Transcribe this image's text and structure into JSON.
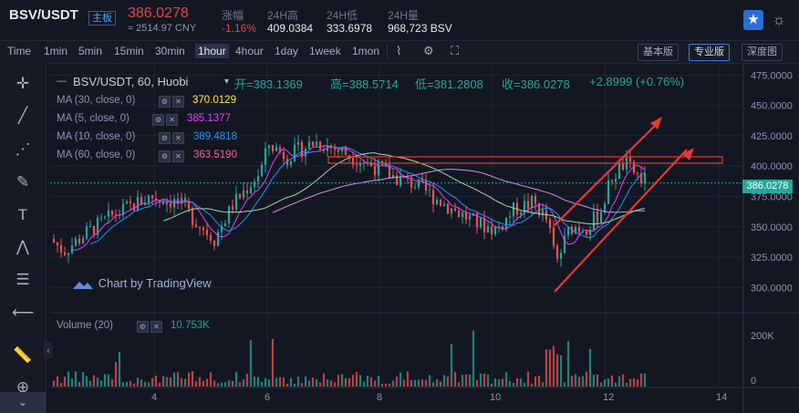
{
  "ticker": {
    "symbol": "BSV/USDT",
    "market_badge": "主板",
    "price": "386.0278",
    "cny": "≈ 2514.97 CNY",
    "change_label": "涨幅",
    "change_value": "-1.16%",
    "high_label": "24H高",
    "high_value": "409.0384",
    "low_label": "24H低",
    "low_value": "333.6978",
    "vol_label": "24H量",
    "vol_value": "968,723 BSV"
  },
  "toolbar": {
    "intervals": [
      "Time",
      "1min",
      "5min",
      "15min",
      "30min",
      "1hour",
      "4hour",
      "1day",
      "1week",
      "1mon"
    ],
    "active_interval": "1hour",
    "versions": [
      "基本版",
      "专业版",
      "深度图"
    ],
    "active_version": "专业版"
  },
  "legend": {
    "title": "BSV/USDT, 60, Huobi",
    "open": "开=383.1369",
    "high": "高=388.5714",
    "low": "低=381.2808",
    "close": "收=386.0278",
    "change": "+2.8999 (+0.76%)",
    "mas": [
      {
        "label": "MA (30, close, 0)",
        "value": "370.0129",
        "color": "#ffeb3b"
      },
      {
        "label": "MA (5, close, 0)",
        "value": "385.1377",
        "color": "#e040fb"
      },
      {
        "label": "MA (10, close, 0)",
        "value": "389.4818",
        "color": "#2196f3"
      },
      {
        "label": "MA (60, close, 0)",
        "value": "363.5190",
        "color": "#f06292"
      }
    ],
    "volume_label": "Volume (20)",
    "volume_value": "10.753K",
    "watermark": "Chart by TradingView"
  },
  "chart_data": {
    "type": "candlestick",
    "x_ticks": [
      "4",
      "6",
      "8",
      "10",
      "12",
      "14"
    ],
    "y_ticks": [
      "475.0000",
      "450.0000",
      "425.0000",
      "400.0000",
      "375.0000",
      "350.0000",
      "325.0000",
      "300.0000"
    ],
    "y_range": [
      280,
      485
    ],
    "current_price": "386.0278",
    "volume_ticks": [
      "200K",
      "0"
    ],
    "grid": true
  },
  "colors": {
    "up": "#26a69a",
    "down": "#ef5350",
    "drawing": "#e53935",
    "background": "#131722",
    "accent": "#2b6fd6"
  }
}
